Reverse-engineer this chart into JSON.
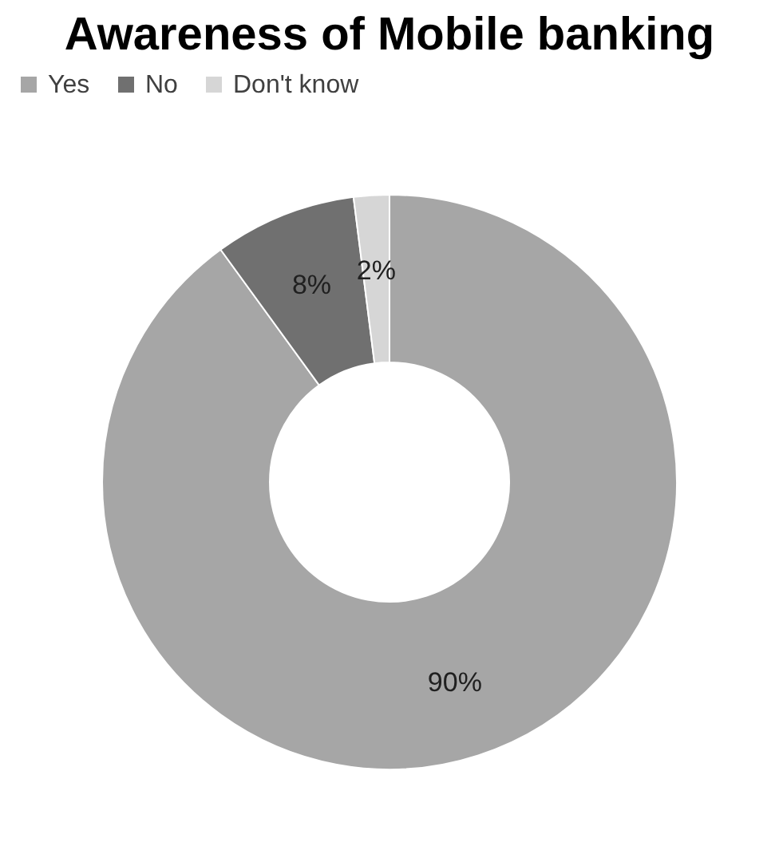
{
  "chart_data": {
    "type": "donut",
    "title": "Awareness of Mobile banking",
    "categories": [
      "Yes",
      "No",
      "Don't know"
    ],
    "values": [
      90,
      8,
      2
    ],
    "colors": [
      "#a6a6a6",
      "#707070",
      "#d6d6d6"
    ],
    "value_labels": [
      "90%",
      "8%",
      "2%"
    ],
    "legend": "top"
  }
}
